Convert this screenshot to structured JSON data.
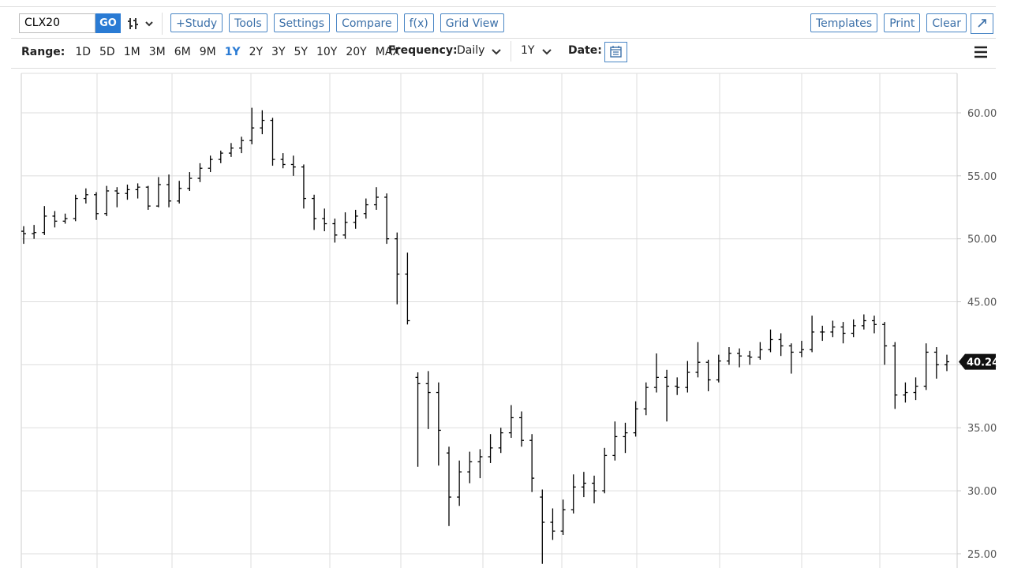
{
  "toolbar": {
    "symbol": "CLX20",
    "go": "GO",
    "left_buttons": [
      "+Study",
      "Tools",
      "Settings",
      "Compare",
      "f(x)",
      "Grid View"
    ],
    "right_buttons": [
      "Templates",
      "Print",
      "Clear"
    ]
  },
  "range_bar": {
    "range_label": "Range:",
    "ranges": [
      "1D",
      "5D",
      "1M",
      "3M",
      "6M",
      "9M",
      "1Y",
      "2Y",
      "3Y",
      "5Y",
      "10Y",
      "20Y",
      "MAX"
    ],
    "active_range": 6,
    "frequency_label": "Frequency:",
    "frequency": "Daily",
    "period": "1Y",
    "date_label": "Date:"
  },
  "chart_data": {
    "type": "ohlc",
    "color": "#000000",
    "grid": true,
    "open": [
      50.6,
      50.4,
      50.5,
      51.8,
      51.4,
      51.6,
      53.2,
      53.5,
      52.0,
      53.8,
      53.6,
      53.9,
      54.1,
      52.6,
      54.3,
      53.0,
      54.0,
      54.8,
      55.6,
      56.3,
      56.8,
      57.2,
      57.8,
      58.8,
      59.4,
      56.3,
      55.9,
      55.7,
      53.2,
      51.6,
      51.2,
      50.3,
      51.3,
      52.0,
      52.7,
      53.3,
      50.0,
      47.2,
      39.0,
      38.5,
      37.8,
      33.0,
      29.5,
      31.5,
      32.3,
      32.7,
      33.4,
      34.6,
      35.8,
      34.0,
      29.5,
      27.5,
      26.8,
      28.5,
      30.3,
      30.6,
      30.0,
      32.8,
      34.3,
      34.6,
      36.5,
      38.2,
      39.0,
      38.3,
      38.2,
      39.4,
      40.2,
      38.8,
      40.3,
      40.9,
      40.7,
      40.6,
      41.2,
      42.0,
      41.5,
      41.0,
      41.2,
      42.6,
      42.6,
      43.0,
      42.5,
      43.1,
      43.5,
      43.2,
      41.5,
      37.6,
      37.8,
      38.3,
      41.0,
      40.0
    ],
    "high": [
      51.0,
      51.1,
      52.6,
      52.2,
      52.0,
      53.5,
      54.0,
      53.7,
      54.2,
      54.1,
      54.3,
      54.4,
      54.2,
      54.9,
      55.1,
      54.6,
      55.3,
      56.0,
      56.6,
      57.0,
      57.6,
      58.1,
      60.4,
      60.2,
      59.6,
      56.8,
      56.6,
      55.9,
      53.5,
      52.4,
      51.6,
      52.1,
      52.3,
      53.2,
      54.1,
      53.6,
      50.5,
      48.9,
      39.4,
      39.5,
      38.6,
      33.5,
      32.4,
      33.1,
      33.3,
      34.5,
      35.0,
      36.8,
      36.3,
      34.5,
      30.1,
      28.6,
      29.3,
      31.3,
      31.5,
      31.2,
      33.4,
      35.5,
      35.4,
      37.1,
      38.6,
      40.9,
      39.6,
      39.0,
      40.3,
      41.8,
      40.4,
      40.8,
      41.4,
      41.3,
      41.1,
      41.8,
      42.8,
      42.5,
      41.7,
      41.9,
      43.9,
      43.1,
      43.5,
      43.4,
      43.6,
      44.0,
      43.9,
      43.4,
      41.8,
      38.6,
      39.0,
      41.7,
      41.4,
      40.8
    ],
    "low": [
      49.6,
      50.0,
      50.3,
      50.9,
      51.2,
      51.4,
      52.8,
      51.5,
      51.8,
      52.5,
      53.1,
      53.2,
      52.3,
      52.5,
      52.5,
      52.8,
      53.8,
      54.5,
      55.3,
      56.0,
      56.5,
      56.8,
      57.5,
      58.3,
      55.8,
      55.6,
      55.0,
      52.4,
      50.7,
      50.6,
      49.7,
      50.0,
      50.8,
      51.6,
      52.3,
      49.6,
      44.8,
      43.2,
      31.9,
      34.9,
      32.0,
      27.2,
      28.8,
      30.6,
      31.0,
      32.2,
      33.0,
      34.2,
      33.5,
      29.9,
      24.2,
      26.1,
      26.5,
      28.2,
      29.5,
      29.0,
      29.8,
      32.4,
      33.0,
      34.3,
      36.0,
      37.8,
      35.5,
      37.6,
      37.8,
      39.0,
      37.9,
      38.6,
      40.0,
      39.8,
      40.0,
      40.4,
      41.0,
      40.7,
      39.3,
      40.6,
      41.0,
      41.9,
      42.2,
      41.7,
      42.2,
      42.8,
      42.5,
      40.0,
      36.5,
      37.0,
      37.2,
      38.0,
      38.9,
      39.5
    ],
    "close": [
      50.4,
      50.5,
      51.8,
      51.4,
      51.6,
      53.2,
      53.5,
      52.0,
      53.8,
      53.6,
      53.9,
      54.1,
      52.6,
      54.3,
      53.0,
      54.0,
      54.8,
      55.6,
      56.3,
      56.8,
      57.2,
      57.8,
      58.8,
      59.4,
      56.3,
      55.9,
      55.7,
      53.2,
      51.6,
      51.2,
      50.3,
      51.3,
      51.8,
      52.7,
      53.3,
      50.0,
      47.2,
      43.5,
      38.5,
      37.8,
      34.8,
      29.5,
      31.5,
      32.3,
      32.7,
      33.4,
      34.6,
      35.8,
      34.0,
      31.0,
      27.5,
      26.8,
      28.5,
      30.3,
      30.6,
      30.0,
      32.8,
      34.3,
      34.6,
      36.5,
      38.2,
      39.0,
      38.3,
      38.2,
      39.4,
      40.2,
      38.8,
      40.3,
      40.9,
      40.7,
      40.6,
      41.2,
      42.0,
      41.5,
      41.0,
      41.2,
      42.6,
      42.6,
      43.0,
      42.5,
      43.1,
      43.5,
      43.2,
      41.5,
      37.6,
      37.8,
      38.3,
      41.0,
      40.0,
      40.24
    ],
    "ylim": [
      23.87,
      63.13
    ],
    "yticks": [
      {
        "value": 25,
        "label": "25.00"
      },
      {
        "value": 30,
        "label": "30.00"
      },
      {
        "value": 35,
        "label": "35.00"
      },
      {
        "value": 40,
        "label": "40.00"
      },
      {
        "value": 45,
        "label": "45.00"
      },
      {
        "value": 50,
        "label": "50.00"
      },
      {
        "value": 55,
        "label": "55.00"
      },
      {
        "value": 60,
        "label": "60.00"
      }
    ]
  }
}
